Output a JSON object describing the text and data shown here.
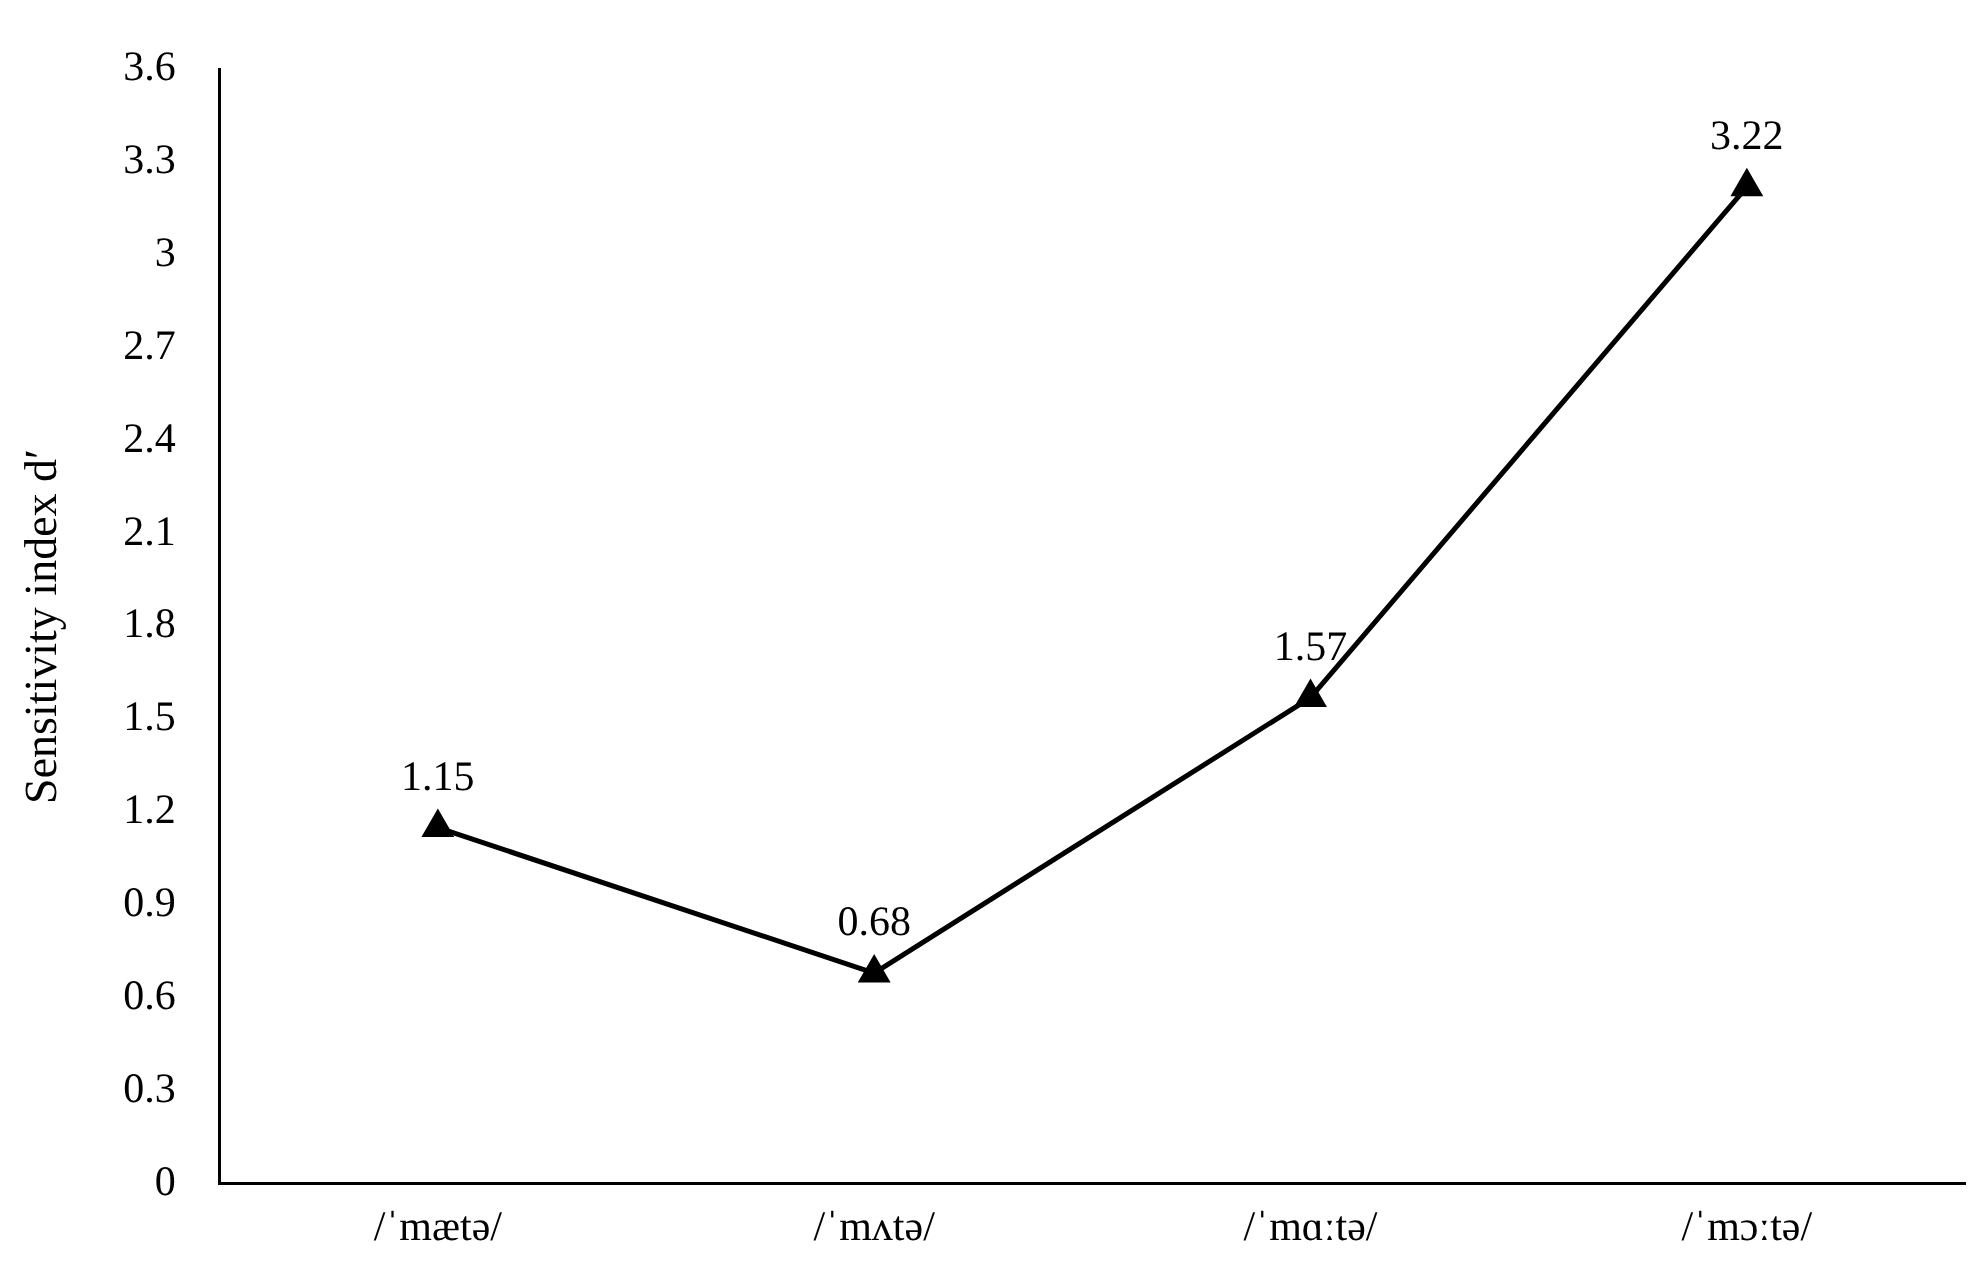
{
  "chart_data": {
    "type": "line",
    "ylabel": "Sensitivity index d′",
    "categories": [
      "/ˈmætə/",
      "/ˈmʌtə/",
      "/ˈmɑːtə/",
      "/ˈmɔːtə/"
    ],
    "values": [
      1.15,
      0.68,
      1.57,
      3.22
    ],
    "color": "#000000",
    "marker": "triangle",
    "line_style": "solid",
    "data_labels": true,
    "grid": false,
    "legend": false,
    "ylim": [
      0,
      3.6
    ],
    "yticks": [
      0,
      0.3,
      0.6,
      0.9,
      1.2,
      1.5,
      1.8,
      2.1,
      2.4,
      2.7,
      3,
      3.3,
      3.6
    ]
  }
}
